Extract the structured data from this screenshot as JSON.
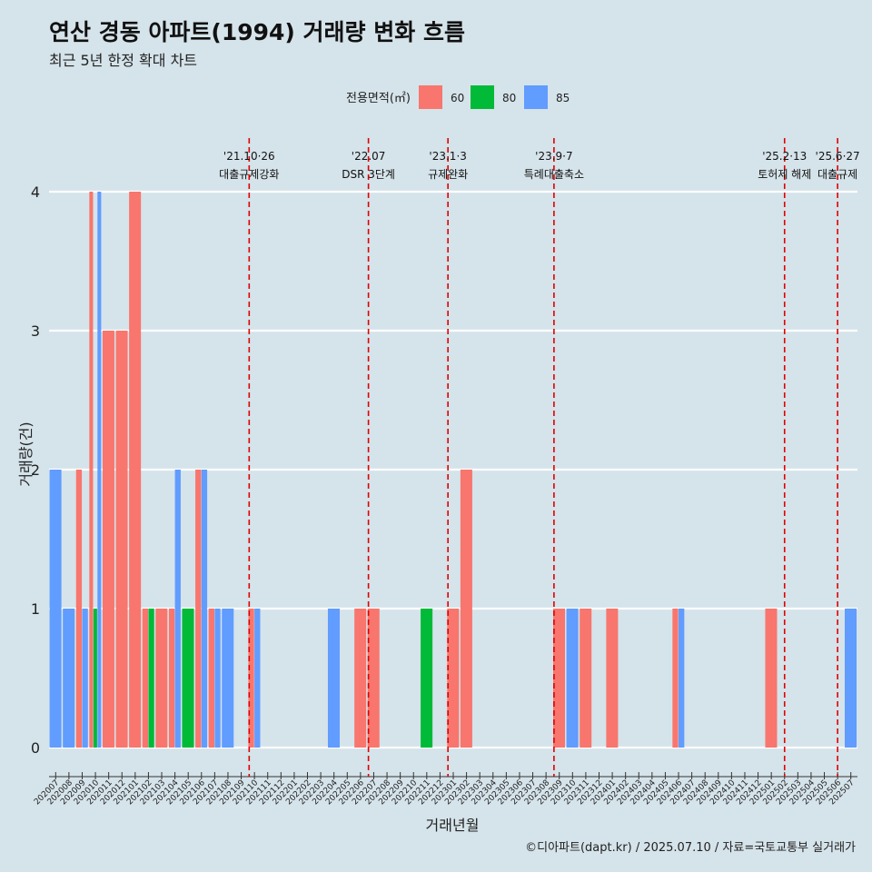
{
  "title": "연산 경동 아파트(1994) 거래량 변화 흐름",
  "subtitle": "최근 5년 한정 확대 차트",
  "caption": "©디아파트(dapt.kr) / 2025.07.10 / 자료=국토교통부 실거래가",
  "colors": {
    "background": "#d5e3ea",
    "60": "#f8766d",
    "80": "#00ba38",
    "85": "#619cff",
    "event_line": "#e00000",
    "grid": "#ffffff"
  },
  "chart_data": {
    "type": "bar",
    "xlabel": "거래년월",
    "ylabel": "거래량(건)",
    "ylim": [
      0,
      4
    ],
    "yticks": [
      0,
      1,
      2,
      3,
      4
    ],
    "grid": true,
    "legend": {
      "title": "전용면적(㎡)",
      "position": "top",
      "entries": [
        "60",
        "80",
        "85"
      ]
    },
    "categories": [
      "202007",
      "202008",
      "202009",
      "202010",
      "202011",
      "202012",
      "202101",
      "202102",
      "202103",
      "202104",
      "202105",
      "202106",
      "202107",
      "202108",
      "202109",
      "202110",
      "202111",
      "202112",
      "202201",
      "202202",
      "202203",
      "202204",
      "202205",
      "202206",
      "202207",
      "202208",
      "202209",
      "202210",
      "202211",
      "202212",
      "202301",
      "202302",
      "202303",
      "202304",
      "202305",
      "202306",
      "202307",
      "202308",
      "202309",
      "202310",
      "202311",
      "202312",
      "202401",
      "202402",
      "202403",
      "202404",
      "202405",
      "202406",
      "202407",
      "202408",
      "202409",
      "202410",
      "202411",
      "202412",
      "202501",
      "202502",
      "202503",
      "202504",
      "202505",
      "202506",
      "202507"
    ],
    "series": [
      {
        "name": "60",
        "values": [
          0,
          0,
          2,
          4,
          3,
          3,
          4,
          1,
          1,
          1,
          0,
          2,
          1,
          0,
          0,
          1,
          0,
          0,
          0,
          0,
          0,
          0,
          0,
          1,
          1,
          0,
          0,
          0,
          0,
          0,
          1,
          2,
          0,
          0,
          0,
          0,
          0,
          0,
          1,
          0,
          1,
          0,
          1,
          0,
          0,
          0,
          0,
          1,
          0,
          0,
          0,
          0,
          0,
          0,
          1,
          0,
          0,
          0,
          0,
          0,
          0
        ]
      },
      {
        "name": "80",
        "values": [
          0,
          0,
          0,
          1,
          0,
          0,
          0,
          1,
          0,
          0,
          1,
          0,
          0,
          0,
          0,
          0,
          0,
          0,
          0,
          0,
          0,
          0,
          0,
          0,
          0,
          0,
          0,
          0,
          1,
          0,
          0,
          0,
          0,
          0,
          0,
          0,
          0,
          0,
          0,
          0,
          0,
          0,
          0,
          0,
          0,
          0,
          0,
          0,
          0,
          0,
          0,
          0,
          0,
          0,
          0,
          0,
          0,
          0,
          0,
          0,
          0
        ]
      },
      {
        "name": "85",
        "values": [
          2,
          1,
          1,
          4,
          0,
          0,
          0,
          0,
          0,
          2,
          0,
          2,
          1,
          1,
          0,
          1,
          0,
          0,
          0,
          0,
          0,
          1,
          0,
          0,
          0,
          0,
          0,
          0,
          0,
          0,
          0,
          0,
          0,
          0,
          0,
          0,
          0,
          0,
          0,
          1,
          0,
          0,
          0,
          0,
          0,
          0,
          0,
          1,
          0,
          0,
          0,
          0,
          0,
          0,
          0,
          0,
          0,
          0,
          0,
          0,
          1
        ]
      }
    ],
    "events": [
      {
        "position": 15.1,
        "date": "'21.10·26",
        "label": "대출규제강화"
      },
      {
        "position": 24.1,
        "date": "'22.07",
        "label": "DSR 3단계"
      },
      {
        "position": 30.1,
        "date": "'23.1·3",
        "label": "규제완화"
      },
      {
        "position": 38.1,
        "date": "'23.9·7",
        "label": "특례대출축소"
      },
      {
        "position": 55.5,
        "date": "'25.2·13",
        "label": "토허제 해제"
      },
      {
        "position": 59.5,
        "date": "'25.6·27",
        "label": "대출규제"
      }
    ]
  }
}
